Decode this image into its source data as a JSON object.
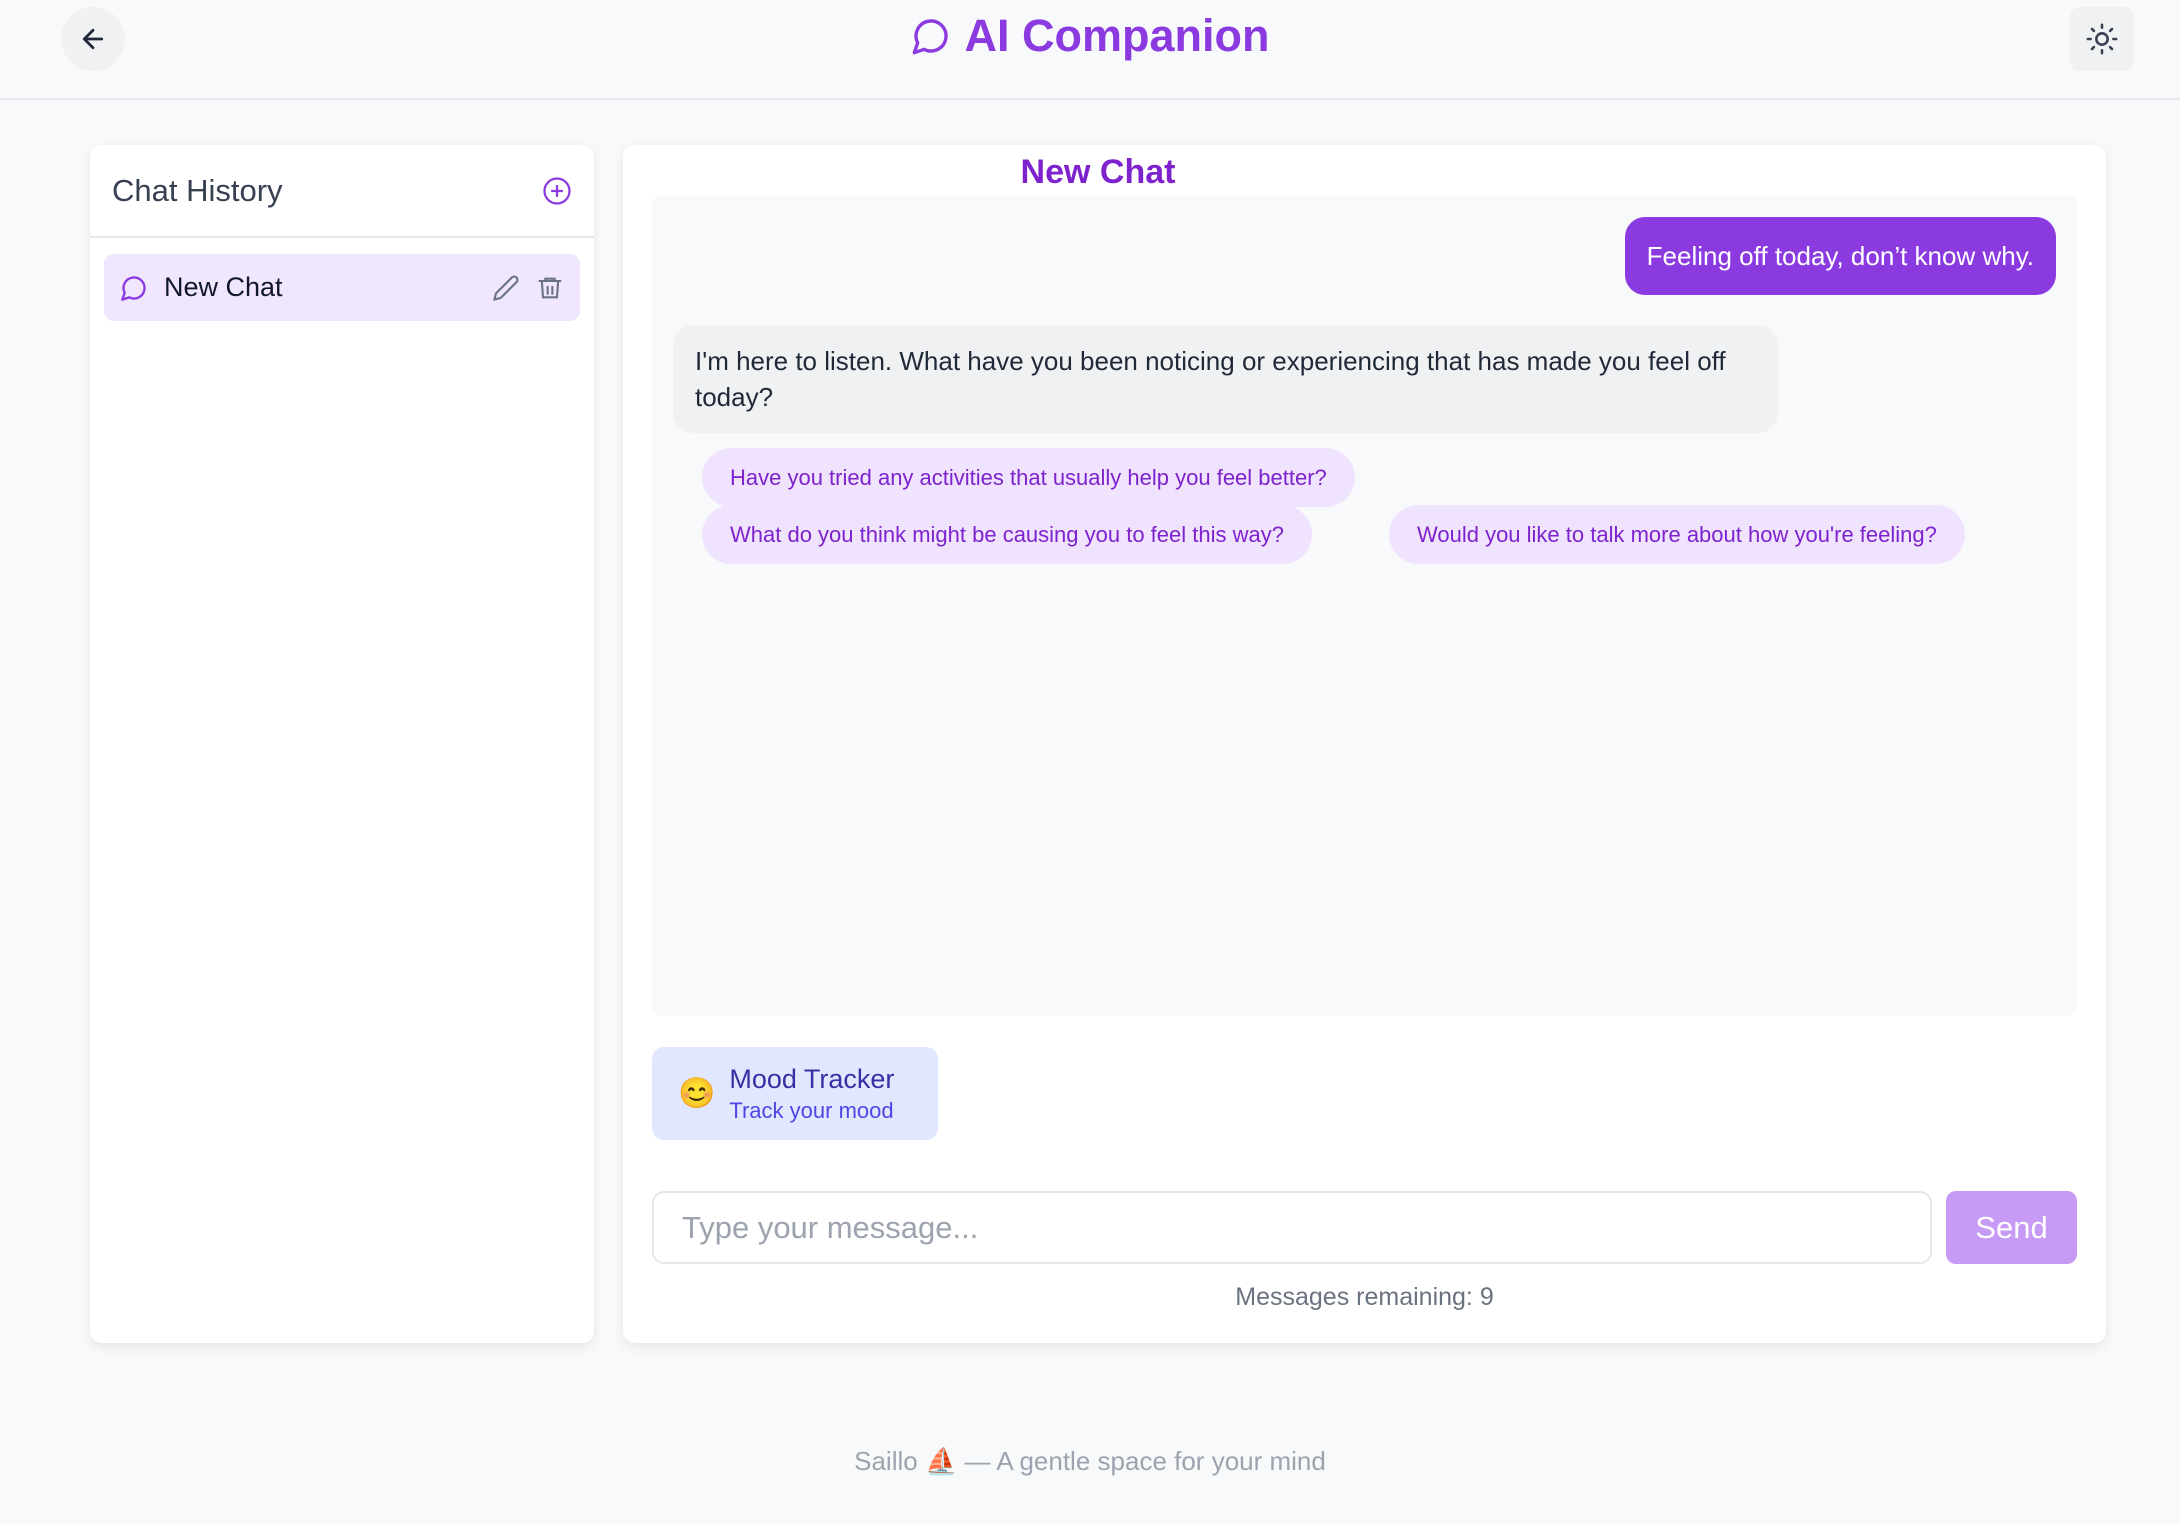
{
  "header": {
    "title": "AI Companion",
    "back_icon": "arrow-left-icon",
    "theme_icon": "sun-icon",
    "brand_color": "#8b3ae0"
  },
  "sidebar": {
    "title": "Chat History",
    "items": [
      {
        "label": "New Chat",
        "active": true
      }
    ]
  },
  "chat": {
    "title": "New Chat",
    "messages": [
      {
        "role": "user",
        "text": "Feeling off today, don’t know why."
      },
      {
        "role": "assistant",
        "text": "I'm here to listen. What have you been noticing or experiencing that has made you feel off today?"
      }
    ],
    "suggestions": [
      "Have you tried any activities that usually help you feel better?",
      "What do you think might be causing you to feel this way?",
      "Would you like to talk more about how you're feeling?"
    ]
  },
  "mood_tracker": {
    "emoji": "😊",
    "title": "Mood Tracker",
    "subtitle": "Track your mood"
  },
  "composer": {
    "placeholder": "Type your message...",
    "value": "",
    "send_label": "Send",
    "remaining": "Messages remaining: 9"
  },
  "footer": {
    "text": "Saillo ⛵ — A gentle space for your mind"
  }
}
